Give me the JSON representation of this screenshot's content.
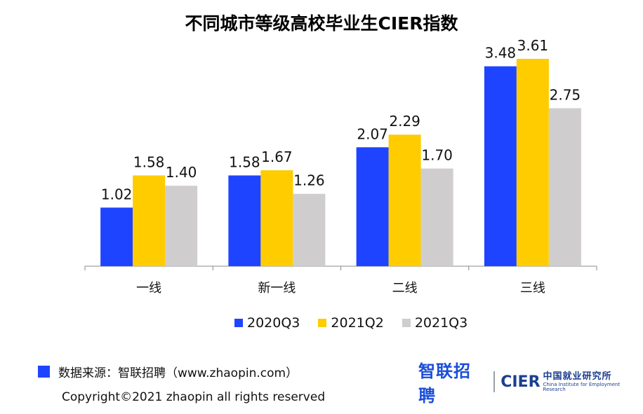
{
  "chart_data": {
    "type": "bar",
    "title": "不同城市等级高校毕业生CIER指数",
    "categories": [
      "一线",
      "新一线",
      "二线",
      "三线"
    ],
    "series": [
      {
        "name": "2020Q3",
        "color": "#1f44ff",
        "values": [
          1.02,
          1.58,
          2.07,
          3.48
        ]
      },
      {
        "name": "2021Q2",
        "color": "#ffcc00",
        "values": [
          1.58,
          1.67,
          2.29,
          3.61
        ]
      },
      {
        "name": "2021Q3",
        "color": "#cfcdce",
        "values": [
          1.4,
          1.26,
          1.7,
          2.75
        ]
      }
    ],
    "ylim": [
      0,
      4.0
    ],
    "grid": false,
    "legend_position": "bottom"
  },
  "footer": {
    "source": "数据来源：智联招聘（www.zhaopin.com）",
    "source_marker_color": "#1f44ff",
    "copyright": "Copyright©2021 zhaopin all rights reserved"
  },
  "logos": {
    "zhaopin": "智联招聘",
    "cier": "CIER",
    "cier_cn": "中国就业研究所",
    "cier_en": "China Institute for Employment Research"
  }
}
